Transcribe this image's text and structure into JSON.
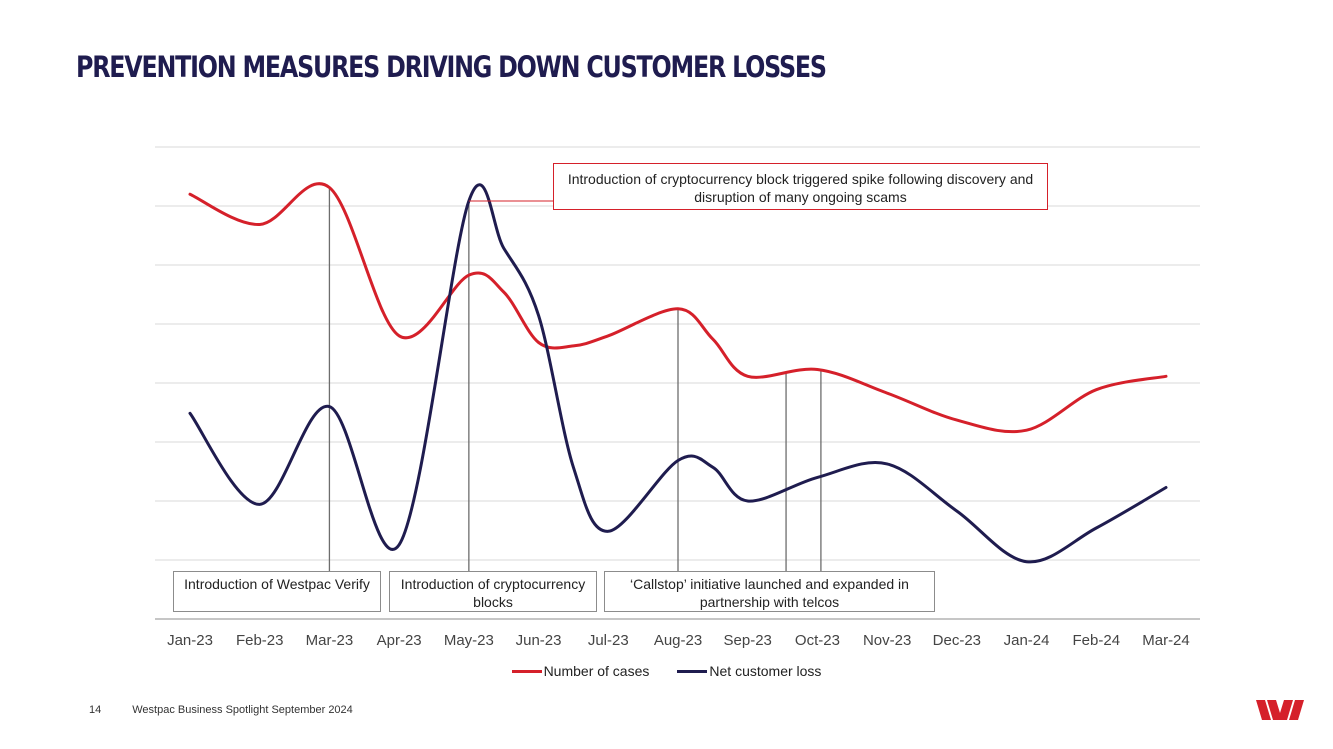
{
  "page": {
    "title": "PREVENTION MEASURES DRIVING DOWN CUSTOMER LOSSES",
    "page_number": "14",
    "footer_text": "Westpac Business Spotlight September 2024",
    "logo_icon": "westpac-logo-icon"
  },
  "colors": {
    "cases": "#d5202a",
    "loss": "#1f1c4f",
    "grid": "#d9d9d9",
    "axis": "#8c8c8c",
    "title": "#1f1c4f"
  },
  "annotations": {
    "crypto_spike": "Introduction of cryptocurrency block triggered spike following discovery and disruption of many ongoing scams",
    "westpac_verify": "Introduction of Westpac Verify",
    "crypto_blocks": "Introduction of cryptocurrency blocks",
    "callstop": "‘Callstop’ initiative launched and expanded in partnership with telcos"
  },
  "chart_data": {
    "type": "line",
    "title": "",
    "categories": [
      "Jan-23",
      "Feb-23",
      "Mar-23",
      "Apr-23",
      "May-23",
      "Jun-23",
      "Jul-23",
      "Aug-23",
      "Sep-23",
      "Oct-23",
      "Nov-23",
      "Dec-23",
      "Jan-24",
      "Feb-24",
      "Mar-24"
    ],
    "x": [
      0,
      1,
      2,
      3,
      4,
      4.5,
      5,
      5.5,
      6,
      7,
      7.5,
      8,
      9,
      10,
      11,
      12,
      13,
      14
    ],
    "series": [
      {
        "name": "Number of cases",
        "color": "#d5202a",
        "values": [
          6.3,
          5.85,
          6.4,
          4.2,
          5.1,
          4.85,
          4.1,
          4.05,
          4.2,
          4.6,
          4.15,
          3.6,
          3.7,
          3.35,
          2.95,
          2.8,
          3.4,
          3.6
        ]
      },
      {
        "name": "Net customer loss",
        "color": "#1f1c4f",
        "values": [
          3.05,
          1.7,
          3.15,
          1.1,
          6.2,
          5.5,
          4.5,
          2.25,
          1.3,
          2.35,
          2.25,
          1.75,
          2.1,
          2.3,
          1.6,
          0.85,
          1.35,
          1.95
        ]
      }
    ],
    "event_lines": [
      2,
      4,
      7,
      8.55,
      9.05
    ],
    "xlabel": "",
    "ylabel": "",
    "ylim": [
      0,
      7
    ],
    "y_ticks_shown": false,
    "grid": true,
    "legend": "bottom-center"
  }
}
